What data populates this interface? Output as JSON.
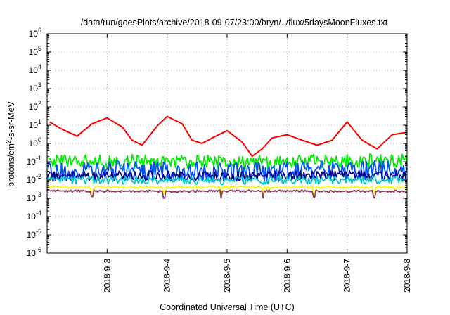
{
  "chart_data": {
    "type": "line",
    "title": "/data/run/goesPlots/archive/2018-09-07/23:00/bryn/../flux/5daysMoonFluxes.txt",
    "xlabel": "Coordinated Universal Time (UTC)",
    "ylabel": {
      "base": "protons/cm",
      "sup": "2",
      "rest": "-s-sr-MeV"
    },
    "x_range": [
      "2018-09-02T00:00",
      "2018-09-08T00:00"
    ],
    "x_ticks": [
      "2018-9-3",
      "2018-9-4",
      "2018-9-5",
      "2018-9-6",
      "2018-9-7",
      "2018-9-8"
    ],
    "y_scale": "log",
    "ylim": [
      1e-06,
      1000000.0
    ],
    "y_ticks": [
      {
        "base": "10",
        "exp": "6"
      },
      {
        "base": "10",
        "exp": "5"
      },
      {
        "base": "10",
        "exp": "4"
      },
      {
        "base": "10",
        "exp": "3"
      },
      {
        "base": "10",
        "exp": "2"
      },
      {
        "base": "10",
        "exp": "1"
      },
      {
        "base": "10",
        "exp": "0"
      },
      {
        "base": "10",
        "exp": "-1"
      },
      {
        "base": "10",
        "exp": "-2"
      },
      {
        "base": "10",
        "exp": "-3"
      },
      {
        "base": "10",
        "exp": "-4"
      },
      {
        "base": "10",
        "exp": "-5"
      },
      {
        "base": "10",
        "exp": "-6"
      }
    ],
    "grid": true,
    "legend": "none",
    "series": [
      {
        "color": "#ff0000",
        "x": [
          "2018-09-02T01:00",
          "2018-09-02T06:00",
          "2018-09-02T12:00",
          "2018-09-02T18:00",
          "2018-09-03T00:00",
          "2018-09-03T06:00",
          "2018-09-03T10:00",
          "2018-09-03T14:00",
          "2018-09-03T20:00",
          "2018-09-04T00:00",
          "2018-09-04T06:00",
          "2018-09-04T10:00",
          "2018-09-04T14:00",
          "2018-09-04T18:00",
          "2018-09-05T00:00",
          "2018-09-05T06:00",
          "2018-09-05T10:00",
          "2018-09-05T14:00",
          "2018-09-05T18:00",
          "2018-09-06T00:00",
          "2018-09-06T06:00",
          "2018-09-06T12:00",
          "2018-09-06T18:00",
          "2018-09-07T00:00",
          "2018-09-07T06:00",
          "2018-09-07T12:00",
          "2018-09-07T18:00",
          "2018-09-08T00:00"
        ],
        "values": [
          15,
          6,
          2.5,
          12,
          25,
          8,
          1.5,
          0.8,
          9,
          30,
          12,
          1.5,
          1.0,
          2,
          5,
          1.2,
          0.2,
          0.5,
          2,
          3,
          1.5,
          0.8,
          1.5,
          15,
          1.5,
          0.5,
          3,
          4
        ]
      },
      {
        "color": "#00ee00",
        "x": [
          "2018-09-02T00:00",
          "2018-09-03T00:00",
          "2018-09-04T00:00",
          "2018-09-05T00:00",
          "2018-09-06T00:00",
          "2018-09-07T00:00",
          "2018-09-08T00:00"
        ],
        "values": [
          0.12,
          0.1,
          0.11,
          0.09,
          0.1,
          0.12,
          0.11
        ]
      },
      {
        "color": "#0050ff",
        "x": [
          "2018-09-02T00:00",
          "2018-09-03T00:00",
          "2018-09-04T00:00",
          "2018-09-05T00:00",
          "2018-09-06T00:00",
          "2018-09-07T00:00",
          "2018-09-08T00:00"
        ],
        "values": [
          0.03,
          0.035,
          0.03,
          0.025,
          0.03,
          0.035,
          0.03
        ]
      },
      {
        "color": "#00008b",
        "x": [
          "2018-09-02T00:00",
          "2018-09-03T00:00",
          "2018-09-04T00:00",
          "2018-09-05T00:00",
          "2018-09-06T00:00",
          "2018-09-07T00:00",
          "2018-09-08T00:00"
        ],
        "values": [
          0.015,
          0.018,
          0.016,
          0.015,
          0.017,
          0.018,
          0.017
        ]
      },
      {
        "color": "#00c8c8",
        "x": [
          "2018-09-02T00:00",
          "2018-09-03T00:00",
          "2018-09-04T00:00",
          "2018-09-05T00:00",
          "2018-09-06T00:00",
          "2018-09-07T00:00",
          "2018-09-08T00:00"
        ],
        "values": [
          0.01,
          0.01,
          0.01,
          0.009,
          0.01,
          0.01,
          0.01
        ]
      },
      {
        "color": "#ffff00",
        "x": [
          "2018-09-02T00:00",
          "2018-09-03T00:00",
          "2018-09-04T00:00",
          "2018-09-05T00:00",
          "2018-09-06T00:00",
          "2018-09-07T00:00",
          "2018-09-08T00:00"
        ],
        "values": [
          0.004,
          0.004,
          0.004,
          0.004,
          0.004,
          0.004,
          0.004
        ]
      },
      {
        "color": "#8b3a62",
        "x": [
          "2018-09-02T00:00",
          "2018-09-03T00:00",
          "2018-09-04T00:00",
          "2018-09-05T00:00",
          "2018-09-06T00:00",
          "2018-09-07T00:00",
          "2018-09-08T00:00"
        ],
        "values": [
          0.0025,
          0.0025,
          0.0024,
          0.0025,
          0.0025,
          0.0024,
          0.0025
        ]
      }
    ]
  }
}
